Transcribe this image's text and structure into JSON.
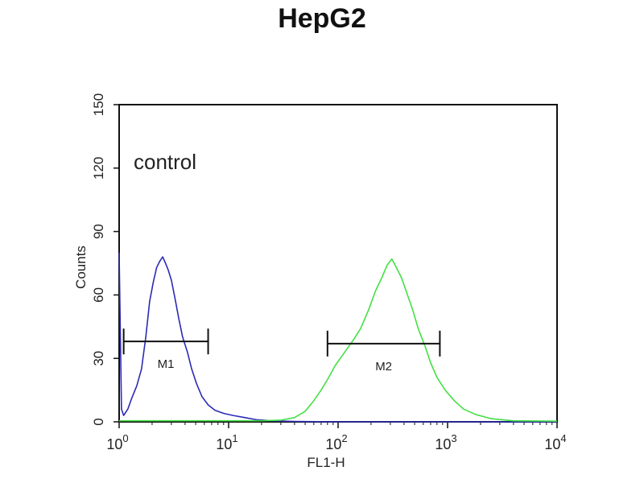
{
  "chart_data": {
    "type": "line",
    "title": "HepG2",
    "xlabel": "FL1-H",
    "ylabel": "Counts",
    "xscale": "log",
    "xlim": [
      1,
      10000
    ],
    "ylim": [
      0,
      150
    ],
    "grid": false,
    "x_ticks": [
      {
        "value": 1,
        "base": "10",
        "exp": "0"
      },
      {
        "value": 10,
        "base": "10",
        "exp": "1"
      },
      {
        "value": 100,
        "base": "10",
        "exp": "2"
      },
      {
        "value": 1000,
        "base": "10",
        "exp": "3"
      },
      {
        "value": 10000,
        "base": "10",
        "exp": "4"
      }
    ],
    "y_ticks": [
      0,
      30,
      60,
      90,
      120,
      150
    ],
    "annotations": [
      {
        "text": "control"
      }
    ],
    "gates": [
      {
        "label": "M1",
        "x_start": 1.1,
        "x_end": 6.5,
        "y": 38
      },
      {
        "label": "M2",
        "x_start": 80,
        "x_end": 850,
        "y": 37
      }
    ],
    "series": [
      {
        "color": "#2b2bb5",
        "points": [
          [
            1.0,
            80
          ],
          [
            1.05,
            6
          ],
          [
            1.1,
            3
          ],
          [
            1.2,
            6
          ],
          [
            1.3,
            11
          ],
          [
            1.45,
            17
          ],
          [
            1.6,
            25
          ],
          [
            1.75,
            40
          ],
          [
            1.9,
            57
          ],
          [
            2.05,
            66
          ],
          [
            2.2,
            73
          ],
          [
            2.35,
            76
          ],
          [
            2.5,
            78
          ],
          [
            2.65,
            75
          ],
          [
            2.8,
            72
          ],
          [
            3.0,
            67
          ],
          [
            3.25,
            58
          ],
          [
            3.5,
            49
          ],
          [
            3.8,
            40
          ],
          [
            4.2,
            33
          ],
          [
            4.6,
            25
          ],
          [
            5.1,
            18
          ],
          [
            5.7,
            12
          ],
          [
            6.5,
            8
          ],
          [
            7.5,
            5.5
          ],
          [
            9,
            4
          ],
          [
            11,
            3
          ],
          [
            14,
            2
          ],
          [
            18,
            1
          ],
          [
            25,
            0.5
          ],
          [
            40,
            0.2
          ],
          [
            100,
            0
          ],
          [
            1000,
            0
          ],
          [
            10000,
            0
          ]
        ]
      },
      {
        "color": "#44e044",
        "points": [
          [
            1,
            0.5
          ],
          [
            10,
            0.5
          ],
          [
            20,
            0.5
          ],
          [
            30,
            0.8
          ],
          [
            40,
            2
          ],
          [
            50,
            5
          ],
          [
            60,
            10
          ],
          [
            70,
            15
          ],
          [
            80,
            20
          ],
          [
            95,
            27
          ],
          [
            115,
            33
          ],
          [
            135,
            38
          ],
          [
            160,
            44
          ],
          [
            190,
            53
          ],
          [
            220,
            62
          ],
          [
            250,
            68
          ],
          [
            280,
            74
          ],
          [
            310,
            77
          ],
          [
            340,
            73
          ],
          [
            380,
            68
          ],
          [
            430,
            60
          ],
          [
            480,
            53
          ],
          [
            540,
            44
          ],
          [
            620,
            36
          ],
          [
            700,
            28
          ],
          [
            800,
            21
          ],
          [
            950,
            15
          ],
          [
            1150,
            10
          ],
          [
            1400,
            6
          ],
          [
            1800,
            3.5
          ],
          [
            2500,
            1.5
          ],
          [
            4000,
            0.5
          ],
          [
            10000,
            0.3
          ]
        ]
      }
    ]
  }
}
